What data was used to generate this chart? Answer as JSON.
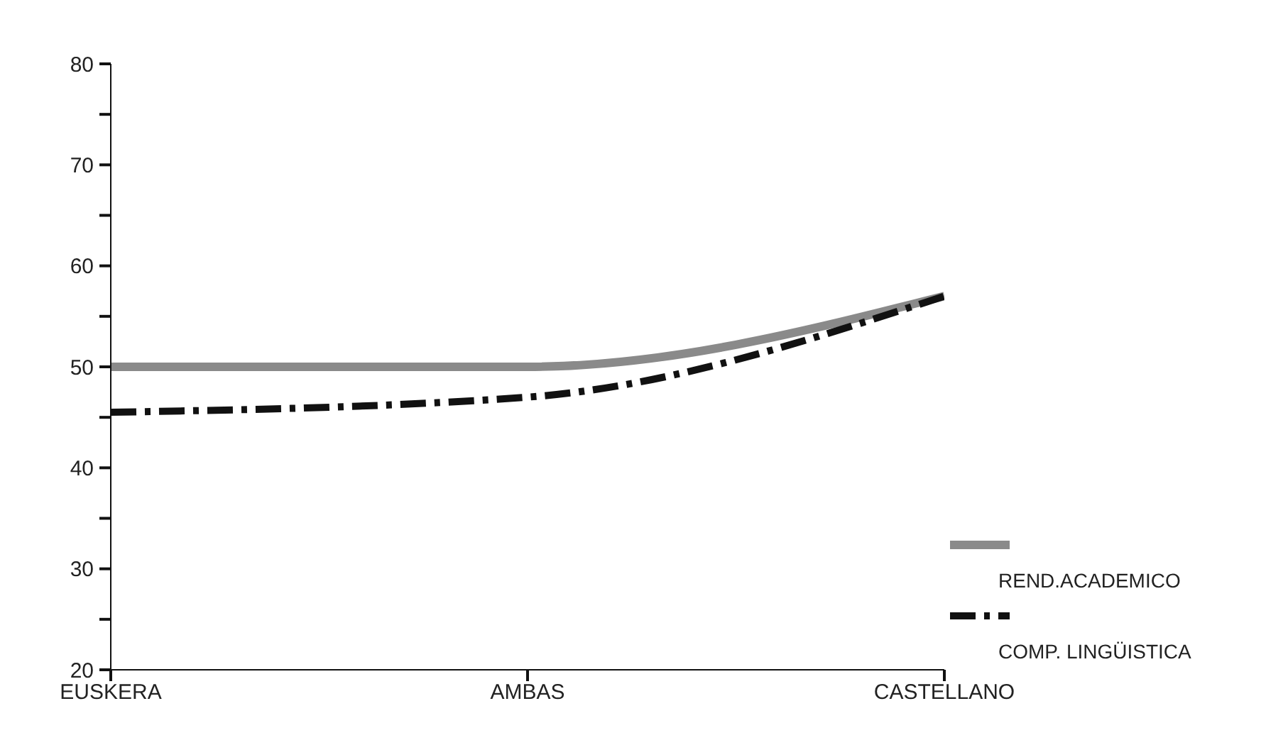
{
  "chart_data": {
    "type": "line",
    "categories": [
      "EUSKERA",
      "AMBAS",
      "CASTELLANO"
    ],
    "series": [
      {
        "name": "REND.ACADEMICO",
        "color": "#8a8a8a",
        "values": [
          50,
          50,
          57
        ],
        "line_style": "solid"
      },
      {
        "name": "COMP. LINGÜISTICA",
        "color": "#111111",
        "values": [
          45.5,
          47,
          57
        ],
        "line_style": "dashed"
      }
    ],
    "ylim": [
      20,
      80
    ],
    "yticks": [
      20,
      {
        "value": 25,
        "label": null
      },
      30,
      {
        "value": 35,
        "label": null
      },
      40,
      {
        "value": 45,
        "label": null
      },
      50,
      {
        "value": 55,
        "label": null
      },
      60,
      {
        "value": 65,
        "label": null
      },
      70,
      {
        "value": 75,
        "label": null
      },
      80
    ],
    "grid": false,
    "legend": "bottom right",
    "marker": "none"
  }
}
